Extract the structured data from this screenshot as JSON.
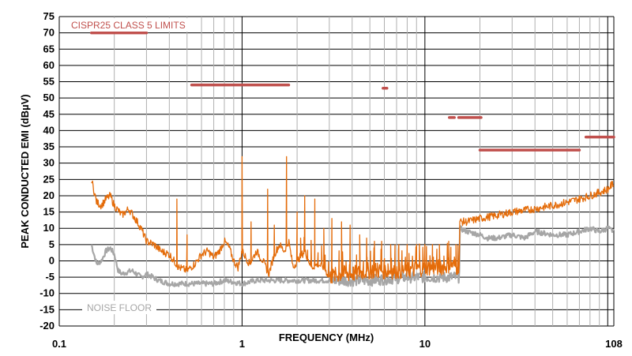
{
  "chart_data": {
    "type": "line",
    "xlabel": "FREQUENCY (MHz)",
    "ylabel": "PEAK CONDUCTED EMI (dBµV)",
    "x_scale": "log",
    "xlim": [
      0.1,
      108
    ],
    "ylim": [
      -20,
      75
    ],
    "y_ticks": [
      75,
      70,
      65,
      60,
      55,
      50,
      45,
      40,
      35,
      30,
      25,
      20,
      15,
      10,
      5,
      0,
      -5,
      -10,
      -15,
      -20
    ],
    "x_tick_labels": [
      {
        "value": 0.1,
        "label": "0.1"
      },
      {
        "value": 1,
        "label": "1"
      },
      {
        "value": 10,
        "label": "10"
      },
      {
        "value": 108,
        "label": "108"
      }
    ],
    "grid": true,
    "colors": {
      "limits": "#c0504d",
      "emi": "#e46c0a",
      "noise": "#a6a6a6",
      "grid": "#000000"
    },
    "annotations": [
      {
        "text": "CISPR25 CLASS 5 LIMITS",
        "series": "limits",
        "at": [
          0.15,
          72.5
        ]
      },
      {
        "text": "NOISE FLOOR",
        "series": "noise",
        "at": [
          0.15,
          -15
        ]
      }
    ],
    "limits": [
      {
        "f1": 0.15,
        "f2": 0.3,
        "level": 70
      },
      {
        "f1": 0.53,
        "f2": 1.8,
        "level": 54
      },
      {
        "f1": 5.9,
        "f2": 6.2,
        "level": 53
      },
      {
        "f1": 13.6,
        "f2": 14.5,
        "level": 44
      },
      {
        "f1": 15.3,
        "f2": 20.3,
        "level": 44
      },
      {
        "f1": 20.0,
        "f2": 70.0,
        "level": 34
      },
      {
        "f1": 76.0,
        "f2": 108.0,
        "level": 38
      }
    ],
    "series": [
      {
        "key": "emi",
        "x": [
          0.15,
          0.16,
          0.17,
          0.18,
          0.19,
          0.2,
          0.22,
          0.24,
          0.26,
          0.28,
          0.3,
          0.33,
          0.36,
          0.4,
          0.45,
          0.5,
          0.55,
          0.6,
          0.65,
          0.7,
          0.75,
          0.8,
          0.85,
          0.9,
          0.95,
          1.0,
          1.05,
          1.1,
          1.2,
          1.3,
          1.4,
          1.5,
          1.6,
          1.7,
          1.8,
          1.9,
          2.0,
          2.2,
          2.4,
          2.6,
          2.8,
          3.0,
          3.5,
          4.0,
          5.0,
          6.0,
          7.0,
          8.0,
          10.0,
          12.0,
          14.0,
          15.0,
          15.4,
          15.5,
          17.0,
          20.0,
          25.0,
          30.0,
          40.0,
          50.0,
          60.0,
          70.0,
          80.0,
          90.0,
          100.0,
          108.0
        ],
        "y": [
          25,
          18,
          17,
          19,
          20,
          17,
          14,
          16,
          13,
          10,
          6,
          5,
          3,
          2,
          -2,
          -3,
          -1,
          2,
          3,
          1,
          3,
          6,
          4,
          0,
          -2,
          3,
          1,
          -1,
          3,
          0,
          -4,
          2,
          5,
          3,
          6,
          -2,
          0,
          3,
          -2,
          -1,
          -2,
          -5,
          -4,
          -4,
          -3,
          -3,
          -3,
          -3,
          -2,
          -2,
          -1,
          -2,
          -1,
          12,
          12,
          13,
          14,
          15,
          16,
          17,
          18,
          19,
          20,
          21,
          22,
          24
        ],
        "spikes": [
          {
            "f": 0.44,
            "y": 19
          },
          {
            "f": 0.5,
            "y": 8
          },
          {
            "f": 1.0,
            "y": 32
          },
          {
            "f": 1.12,
            "y": 12
          },
          {
            "f": 1.38,
            "y": 22
          },
          {
            "f": 1.5,
            "y": 11
          },
          {
            "f": 1.75,
            "y": 32
          },
          {
            "f": 2.0,
            "y": 15
          },
          {
            "f": 2.2,
            "y": 20
          },
          {
            "f": 2.5,
            "y": 19
          },
          {
            "f": 2.8,
            "y": 10
          },
          {
            "f": 3.1,
            "y": 13
          },
          {
            "f": 3.5,
            "y": 12
          },
          {
            "f": 3.9,
            "y": 11
          },
          {
            "f": 4.4,
            "y": 8
          },
          {
            "f": 4.8,
            "y": 7
          },
          {
            "f": 5.3,
            "y": 6
          },
          {
            "f": 5.8,
            "y": 6
          },
          {
            "f": 6.5,
            "y": 5
          },
          {
            "f": 7.2,
            "y": 5
          },
          {
            "f": 8.0,
            "y": 5
          },
          {
            "f": 9.0,
            "y": 5
          },
          {
            "f": 10.0,
            "y": 5
          },
          {
            "f": 11.0,
            "y": 5
          },
          {
            "f": 12.0,
            "y": 5
          },
          {
            "f": 13.5,
            "y": 6
          },
          {
            "f": 14.8,
            "y": 5
          }
        ]
      },
      {
        "key": "noise",
        "x": [
          0.15,
          0.16,
          0.17,
          0.18,
          0.19,
          0.2,
          0.21,
          0.22,
          0.25,
          0.28,
          0.3,
          0.35,
          0.4,
          0.5,
          0.6,
          0.7,
          0.8,
          1.0,
          1.2,
          1.5,
          2.0,
          3.0,
          5.0,
          8.0,
          10.0,
          12.0,
          14.0,
          15.0,
          15.4,
          15.5,
          17.0,
          20.0,
          22.0,
          25.0,
          30.0,
          35.0,
          40.0,
          50.0,
          60.0,
          70.0,
          80.0,
          90.0,
          100.0,
          108.0
        ],
        "y": [
          5,
          -1,
          0,
          3,
          4,
          2,
          -3,
          -4,
          -3,
          -5,
          -4,
          -6,
          -7,
          -7,
          -7,
          -7,
          -6,
          -7,
          -6,
          -6,
          -6,
          -6,
          -6,
          -5,
          -5,
          -5,
          -5,
          -5,
          -5,
          10,
          9,
          8,
          7,
          7,
          8,
          7,
          9,
          8,
          8,
          9,
          10,
          9,
          10,
          9
        ]
      }
    ]
  }
}
